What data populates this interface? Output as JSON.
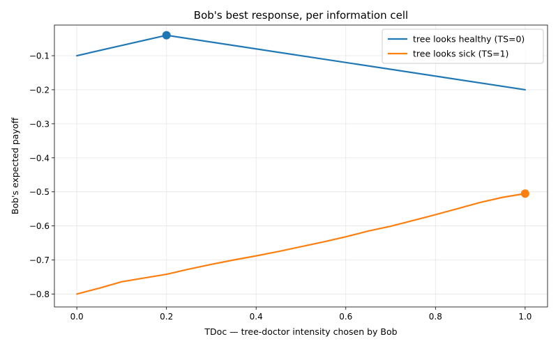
{
  "chart_data": {
    "type": "line",
    "title": "Bob's best response, per information cell",
    "xlabel": "TDoc — tree-doctor intensity chosen by Bob",
    "ylabel": "Bob's expected payoff",
    "xlim": [
      -0.05,
      1.05
    ],
    "ylim": [
      -0.838,
      -0.01
    ],
    "xticks": [
      0.0,
      0.2,
      0.4,
      0.6,
      0.8,
      1.0
    ],
    "xtick_labels": [
      "0.0",
      "0.2",
      "0.4",
      "0.6",
      "0.8",
      "1.0"
    ],
    "yticks": [
      -0.1,
      -0.2,
      -0.3,
      -0.4,
      -0.5,
      -0.6,
      -0.7,
      -0.8
    ],
    "ytick_labels": [
      "−0.1",
      "−0.2",
      "−0.3",
      "−0.4",
      "−0.5",
      "−0.6",
      "−0.7",
      "−0.8"
    ],
    "grid": true,
    "legend_position": "top-right",
    "series": [
      {
        "name": "tree looks healthy (TS=0)",
        "color": "#1f77b4",
        "x": [
          0.0,
          0.2,
          1.0
        ],
        "y": [
          -0.1,
          -0.04,
          -0.2
        ],
        "best_response": {
          "x": 0.2,
          "y": -0.04
        }
      },
      {
        "name": "tree looks sick (TS=1)",
        "color": "#ff7f0e",
        "x": [
          0.0,
          0.05,
          0.1,
          0.2,
          0.25,
          0.3,
          0.35,
          0.4,
          0.45,
          0.5,
          0.55,
          0.6,
          0.65,
          0.7,
          0.75,
          0.8,
          0.85,
          0.9,
          0.95,
          1.0
        ],
        "y": [
          -0.8,
          -0.783,
          -0.764,
          -0.742,
          -0.727,
          -0.713,
          -0.7,
          -0.688,
          -0.675,
          -0.661,
          -0.647,
          -0.632,
          -0.615,
          -0.601,
          -0.584,
          -0.567,
          -0.549,
          -0.531,
          -0.516,
          -0.505
        ],
        "best_response": {
          "x": 1.0,
          "y": -0.505
        }
      }
    ]
  }
}
